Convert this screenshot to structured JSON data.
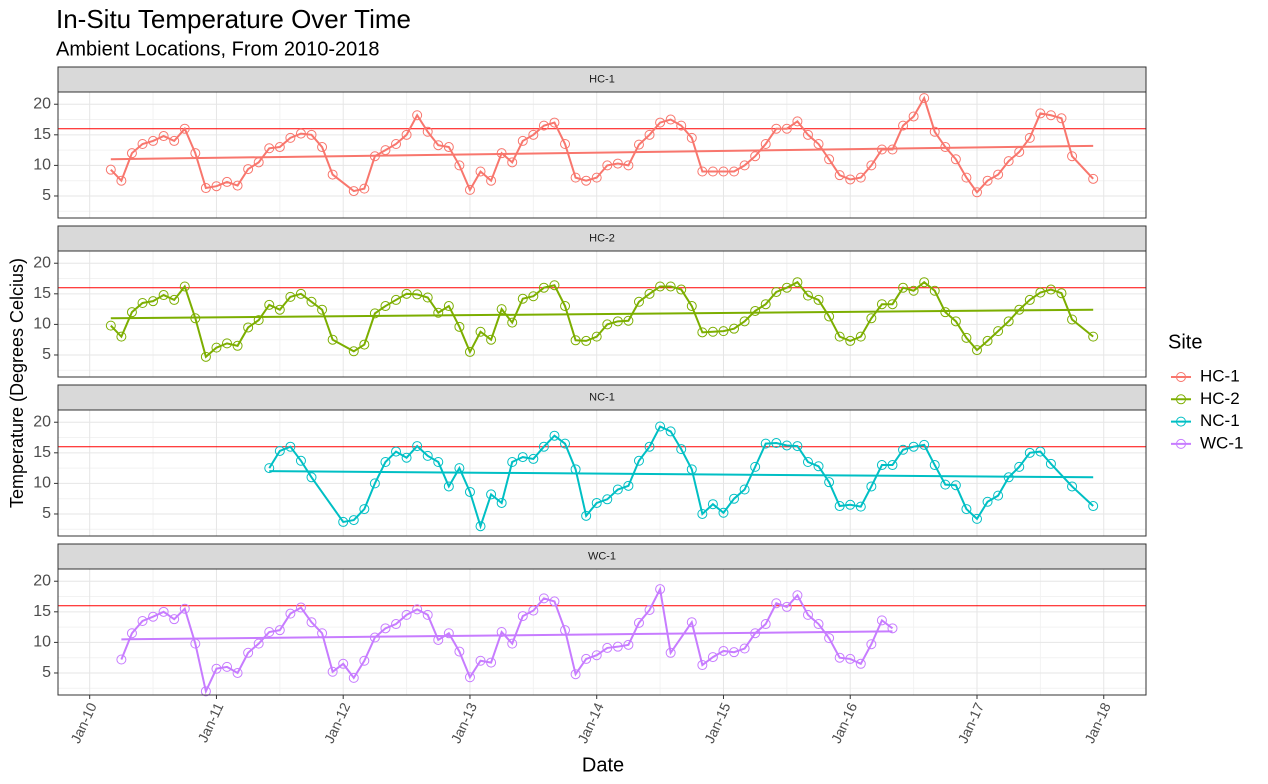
{
  "chart_data": {
    "type": "line",
    "title": "In-Situ Temperature Over Time",
    "subtitle": "Ambient Locations, From 2010-2018",
    "xlabel": "Date",
    "ylabel": "Temperature (Degrees Celcius)",
    "legend_title": "Site",
    "legend": "right",
    "grid": true,
    "hline": 16,
    "hline_color": "#ff0000",
    "xlim": [
      "2009-10",
      "2018-05"
    ],
    "xticks": [
      {
        "value": "2010-01",
        "label": "Jan-10"
      },
      {
        "value": "2011-01",
        "label": "Jan-11"
      },
      {
        "value": "2012-01",
        "label": "Jan-12"
      },
      {
        "value": "2013-01",
        "label": "Jan-13"
      },
      {
        "value": "2014-01",
        "label": "Jan-14"
      },
      {
        "value": "2015-01",
        "label": "Jan-15"
      },
      {
        "value": "2016-01",
        "label": "Jan-16"
      },
      {
        "value": "2017-01",
        "label": "Jan-17"
      },
      {
        "value": "2018-01",
        "label": "Jan-18"
      }
    ],
    "ylim": [
      1.4,
      22
    ],
    "yticks": [
      5,
      10,
      15,
      20
    ],
    "series": [
      {
        "name": "HC-1",
        "color": "#F8766D",
        "trend": [
          11.0,
          13.2
        ],
        "x": [
          "2010-03",
          "2010-04",
          "2010-05",
          "2010-06",
          "2010-07",
          "2010-08",
          "2010-09",
          "2010-10",
          "2010-11",
          "2010-12",
          "2011-01",
          "2011-02",
          "2011-03",
          "2011-04",
          "2011-05",
          "2011-06",
          "2011-07",
          "2011-08",
          "2011-09",
          "2011-10",
          "2011-11",
          "2011-12",
          "2012-02",
          "2012-03",
          "2012-04",
          "2012-05",
          "2012-06",
          "2012-07",
          "2012-08",
          "2012-09",
          "2012-10",
          "2012-11",
          "2012-12",
          "2013-01",
          "2013-02",
          "2013-03",
          "2013-04",
          "2013-05",
          "2013-06",
          "2013-07",
          "2013-08",
          "2013-09",
          "2013-10",
          "2013-11",
          "2013-12",
          "2014-01",
          "2014-02",
          "2014-03",
          "2014-04",
          "2014-05",
          "2014-06",
          "2014-07",
          "2014-08",
          "2014-09",
          "2014-10",
          "2014-11",
          "2014-12",
          "2015-01",
          "2015-02",
          "2015-03",
          "2015-04",
          "2015-05",
          "2015-06",
          "2015-07",
          "2015-08",
          "2015-09",
          "2015-10",
          "2015-11",
          "2015-12",
          "2016-01",
          "2016-02",
          "2016-03",
          "2016-04",
          "2016-05",
          "2016-06",
          "2016-07",
          "2016-08",
          "2016-09",
          "2016-10",
          "2016-11",
          "2016-12",
          "2017-01",
          "2017-02",
          "2017-03",
          "2017-04",
          "2017-05",
          "2017-06",
          "2017-07",
          "2017-08",
          "2017-09",
          "2017-10",
          "2017-12"
        ],
        "values": [
          9.3,
          7.5,
          12,
          13.5,
          14,
          14.8,
          14,
          16,
          12,
          6.3,
          6.6,
          7.3,
          6.7,
          9.4,
          10.5,
          12.8,
          13,
          14.5,
          15.2,
          15,
          13,
          8.5,
          5.8,
          6.2,
          11.5,
          12.5,
          13.5,
          15,
          18.2,
          15.5,
          13.3,
          13,
          10,
          6,
          9,
          7.5,
          12,
          10.5,
          14,
          15,
          16.5,
          17,
          13.5,
          8,
          7.5,
          8,
          10,
          10.3,
          10,
          13.4,
          15,
          17,
          17.5,
          16.5,
          14.5,
          9,
          9,
          9,
          9,
          10,
          11.5,
          13.5,
          16,
          16,
          17.2,
          15,
          13.5,
          11,
          8.4,
          7.7,
          8,
          10,
          12.6,
          12.6,
          16.5,
          18,
          21,
          15.5,
          13,
          11,
          8,
          5.6,
          7.5,
          8.5,
          10.7,
          12.2,
          14.5,
          18.5,
          18.2,
          17.7,
          11.5,
          7.8
        ]
      },
      {
        "name": "HC-2",
        "color": "#7CAE00",
        "trend": [
          11.0,
          12.4
        ],
        "x": [
          "2010-03",
          "2010-04",
          "2010-05",
          "2010-06",
          "2010-07",
          "2010-08",
          "2010-09",
          "2010-10",
          "2010-11",
          "2010-12",
          "2011-01",
          "2011-02",
          "2011-03",
          "2011-04",
          "2011-05",
          "2011-06",
          "2011-07",
          "2011-08",
          "2011-09",
          "2011-10",
          "2011-11",
          "2011-12",
          "2012-02",
          "2012-03",
          "2012-04",
          "2012-05",
          "2012-06",
          "2012-07",
          "2012-08",
          "2012-09",
          "2012-10",
          "2012-11",
          "2012-12",
          "2013-01",
          "2013-02",
          "2013-03",
          "2013-04",
          "2013-05",
          "2013-06",
          "2013-07",
          "2013-08",
          "2013-09",
          "2013-10",
          "2013-11",
          "2013-12",
          "2014-01",
          "2014-02",
          "2014-03",
          "2014-04",
          "2014-05",
          "2014-06",
          "2014-07",
          "2014-08",
          "2014-09",
          "2014-10",
          "2014-11",
          "2014-12",
          "2015-01",
          "2015-02",
          "2015-03",
          "2015-04",
          "2015-05",
          "2015-06",
          "2015-07",
          "2015-08",
          "2015-09",
          "2015-10",
          "2015-11",
          "2015-12",
          "2016-01",
          "2016-02",
          "2016-03",
          "2016-04",
          "2016-05",
          "2016-06",
          "2016-07",
          "2016-08",
          "2016-09",
          "2016-10",
          "2016-11",
          "2016-12",
          "2017-01",
          "2017-02",
          "2017-03",
          "2017-04",
          "2017-05",
          "2017-06",
          "2017-07",
          "2017-08",
          "2017-09",
          "2017-10",
          "2017-12"
        ],
        "values": [
          9.8,
          8,
          12,
          13.5,
          13.8,
          14.8,
          14,
          16.2,
          11,
          4.7,
          6.2,
          6.9,
          6.5,
          9.5,
          10.7,
          13.2,
          12.4,
          14.5,
          15,
          13.7,
          12.4,
          7.5,
          5.6,
          6.7,
          11.8,
          13,
          14,
          15,
          14.9,
          14.4,
          11.9,
          13,
          9.6,
          5.5,
          8.8,
          7.5,
          12.5,
          10.3,
          14.2,
          14.6,
          16,
          16.4,
          13,
          7.4,
          7.3,
          8,
          10,
          10.5,
          10.6,
          13.7,
          15,
          16.2,
          16.2,
          15.7,
          13,
          8.7,
          8.8,
          8.9,
          9.3,
          10.5,
          12.2,
          13.3,
          15.3,
          16,
          16.9,
          14.7,
          14,
          11.3,
          8,
          7.3,
          8,
          11,
          13.3,
          13.3,
          16,
          15.5,
          16.9,
          15.5,
          12,
          10.5,
          7.8,
          5.8,
          7.3,
          8.9,
          10.5,
          12.4,
          14,
          15.2,
          15.7,
          15.1,
          10.8,
          8
        ]
      },
      {
        "name": "NC-1",
        "color": "#00BFC4",
        "trend": [
          12.0,
          11.0
        ],
        "x": [
          "2011-06",
          "2011-07",
          "2011-08",
          "2011-09",
          "2011-10",
          "2012-01",
          "2012-02",
          "2012-03",
          "2012-04",
          "2012-05",
          "2012-06",
          "2012-07",
          "2012-08",
          "2012-09",
          "2012-10",
          "2012-11",
          "2012-12",
          "2013-01",
          "2013-02",
          "2013-03",
          "2013-04",
          "2013-05",
          "2013-06",
          "2013-07",
          "2013-08",
          "2013-09",
          "2013-10",
          "2013-11",
          "2013-12",
          "2014-01",
          "2014-02",
          "2014-03",
          "2014-04",
          "2014-05",
          "2014-06",
          "2014-07",
          "2014-08",
          "2014-09",
          "2014-10",
          "2014-11",
          "2014-12",
          "2015-01",
          "2015-02",
          "2015-03",
          "2015-04",
          "2015-05",
          "2015-06",
          "2015-07",
          "2015-08",
          "2015-09",
          "2015-10",
          "2015-11",
          "2015-12",
          "2016-01",
          "2016-02",
          "2016-03",
          "2016-04",
          "2016-05",
          "2016-06",
          "2016-07",
          "2016-08",
          "2016-09",
          "2016-10",
          "2016-11",
          "2016-12",
          "2017-01",
          "2017-02",
          "2017-03",
          "2017-04",
          "2017-05",
          "2017-06",
          "2017-07",
          "2017-08",
          "2017-10",
          "2017-12"
        ],
        "values": [
          12.5,
          15.3,
          16,
          13.7,
          11,
          3.7,
          4,
          5.8,
          10,
          13.5,
          15.2,
          14.2,
          16.1,
          14.5,
          13.5,
          9.5,
          12.5,
          8.6,
          3,
          8.2,
          6.8,
          13.5,
          14.3,
          14,
          16,
          17.8,
          16.5,
          12.3,
          4.7,
          6.8,
          7.4,
          9,
          9.6,
          13.7,
          16,
          19.3,
          18.5,
          15.6,
          12.3,
          5,
          6.6,
          5.2,
          7.5,
          9,
          12.7,
          16.5,
          16.6,
          16.2,
          16.1,
          13.5,
          12.8,
          10.2,
          6.3,
          6.5,
          6.2,
          9.5,
          13,
          13,
          15.5,
          16,
          16.3,
          13,
          9.8,
          9.7,
          5.8,
          4.2,
          7,
          8,
          11,
          12.7,
          15,
          15.2,
          13.2,
          9.5,
          6.3
        ]
      },
      {
        "name": "WC-1",
        "color": "#C77CFF",
        "trend": [
          10.5,
          11.8
        ],
        "x": [
          "2010-04",
          "2010-05",
          "2010-06",
          "2010-07",
          "2010-08",
          "2010-09",
          "2010-10",
          "2010-11",
          "2010-12",
          "2011-01",
          "2011-02",
          "2011-03",
          "2011-04",
          "2011-05",
          "2011-06",
          "2011-07",
          "2011-08",
          "2011-09",
          "2011-10",
          "2011-11",
          "2011-12",
          "2012-01",
          "2012-02",
          "2012-03",
          "2012-04",
          "2012-05",
          "2012-06",
          "2012-07",
          "2012-08",
          "2012-09",
          "2012-10",
          "2012-11",
          "2012-12",
          "2013-01",
          "2013-02",
          "2013-03",
          "2013-04",
          "2013-05",
          "2013-06",
          "2013-07",
          "2013-08",
          "2013-09",
          "2013-10",
          "2013-11",
          "2013-12",
          "2014-01",
          "2014-02",
          "2014-03",
          "2014-04",
          "2014-05",
          "2014-06",
          "2014-07",
          "2014-08",
          "2014-10",
          "2014-11",
          "2014-12",
          "2015-01",
          "2015-02",
          "2015-03",
          "2015-04",
          "2015-05",
          "2015-06",
          "2015-07",
          "2015-08",
          "2015-09",
          "2015-10",
          "2015-11",
          "2015-12",
          "2016-01",
          "2016-02",
          "2016-03",
          "2016-04",
          "2016-05"
        ],
        "values": [
          7.2,
          11.5,
          13.5,
          14.2,
          15,
          13.8,
          15.5,
          9.8,
          2,
          5.7,
          6,
          5,
          8.3,
          9.8,
          11.7,
          12,
          14.7,
          15.7,
          13.3,
          11.5,
          5.2,
          6.5,
          4.2,
          7,
          10.8,
          12.3,
          13,
          14.5,
          15.4,
          14.5,
          10.4,
          11.5,
          8.5,
          4.3,
          7,
          6.7,
          11.7,
          9.8,
          14.3,
          15.2,
          17.2,
          16.7,
          12,
          4.8,
          7.3,
          7.9,
          9.1,
          9.3,
          9.6,
          13.2,
          15.3,
          18.7,
          8.3,
          13.3,
          6.3,
          7.6,
          8.6,
          8.4,
          9,
          11.5,
          13,
          16.4,
          15.8,
          17.7,
          14.5,
          13,
          10.7,
          7.5,
          7.3,
          6.5,
          9.7,
          13.6,
          12.3
        ]
      }
    ]
  }
}
